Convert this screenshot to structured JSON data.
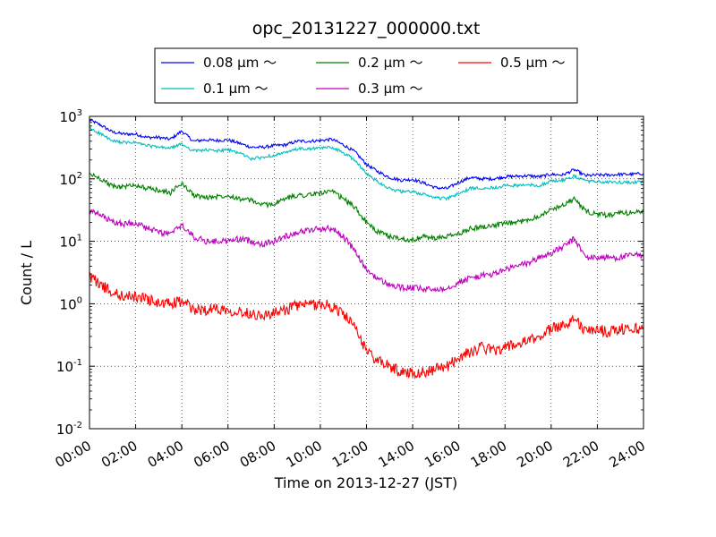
{
  "chart_data": {
    "type": "line",
    "title": "opc_20131227_000000.txt",
    "xlabel": "Time on 2013-12-27 (JST)",
    "ylabel": "Count / L",
    "yscale": "log",
    "xlim": [
      "00:00",
      "24:00"
    ],
    "ylim": [
      0.01,
      1000
    ],
    "grid": true,
    "legend_position": "top-center (above plot)",
    "x_ticks": [
      "00:00",
      "02:00",
      "04:00",
      "06:00",
      "08:00",
      "10:00",
      "12:00",
      "14:00",
      "16:00",
      "18:00",
      "20:00",
      "22:00",
      "24:00"
    ],
    "y_ticks": [
      {
        "value": 0.01,
        "base": "10",
        "exp": "-2"
      },
      {
        "value": 0.1,
        "base": "10",
        "exp": "-1"
      },
      {
        "value": 1,
        "base": "10",
        "exp": "0"
      },
      {
        "value": 10,
        "base": "10",
        "exp": "1"
      },
      {
        "value": 100,
        "base": "10",
        "exp": "2"
      },
      {
        "value": 1000,
        "base": "10",
        "exp": "3"
      }
    ],
    "x_hours": [
      0,
      0.5,
      1,
      1.5,
      2,
      2.5,
      3,
      3.5,
      4,
      4.5,
      5,
      5.5,
      6,
      6.5,
      7,
      7.5,
      8,
      8.5,
      9,
      9.5,
      10,
      10.5,
      11,
      11.5,
      12,
      12.5,
      13,
      13.5,
      14,
      14.5,
      15,
      15.5,
      16,
      16.5,
      17,
      17.5,
      18,
      18.5,
      19,
      19.5,
      20,
      20.5,
      21,
      21.5,
      22,
      22.5,
      23,
      23.5,
      24
    ],
    "series": [
      {
        "name": "0.08 μm ～",
        "color": "#0000ff",
        "values": [
          880,
          720,
          560,
          520,
          520,
          460,
          460,
          430,
          580,
          400,
          420,
          410,
          420,
          370,
          320,
          320,
          340,
          350,
          400,
          400,
          410,
          430,
          350,
          270,
          170,
          130,
          105,
          95,
          98,
          85,
          72,
          70,
          88,
          105,
          100,
          100,
          108,
          110,
          112,
          108,
          118,
          115,
          140,
          112,
          115,
          115,
          118,
          118,
          122
        ]
      },
      {
        "name": "0.1 μm ～",
        "color": "#00bfbf",
        "values": [
          650,
          520,
          400,
          380,
          380,
          340,
          320,
          310,
          360,
          280,
          290,
          280,
          290,
          260,
          210,
          220,
          240,
          260,
          300,
          300,
          310,
          320,
          260,
          200,
          120,
          90,
          70,
          62,
          62,
          56,
          50,
          48,
          58,
          70,
          72,
          72,
          78,
          78,
          80,
          78,
          92,
          95,
          110,
          92,
          90,
          88,
          88,
          88,
          88
        ]
      },
      {
        "name": "0.2 μm ～",
        "color": "#008000",
        "values": [
          120,
          100,
          75,
          75,
          80,
          70,
          65,
          60,
          85,
          55,
          50,
          52,
          55,
          48,
          45,
          38,
          40,
          48,
          55,
          55,
          60,
          62,
          48,
          35,
          20,
          14,
          12,
          11,
          10.5,
          12,
          11,
          12,
          13,
          16,
          17,
          18,
          19,
          20,
          22,
          26,
          32,
          38,
          48,
          30,
          27,
          26,
          28,
          29,
          30
        ]
      },
      {
        "name": "0.3 μm ～",
        "color": "#bf00bf",
        "values": [
          30,
          26,
          20,
          19,
          20,
          16,
          14,
          13,
          18,
          12,
          10,
          10,
          10,
          11,
          10,
          9,
          10,
          12,
          14,
          15,
          16,
          16,
          12,
          7,
          3.5,
          2.5,
          2,
          1.8,
          1.8,
          1.7,
          1.7,
          1.8,
          2.2,
          2.6,
          2.8,
          3,
          3.5,
          4,
          4.5,
          5.5,
          6.5,
          8,
          11,
          5.5,
          5.5,
          5.5,
          5.5,
          6,
          6
        ]
      },
      {
        "name": "0.5 μm ～",
        "color": "#ff0000",
        "values": [
          2.8,
          2,
          1.5,
          1.3,
          1.3,
          1.2,
          1.0,
          1.0,
          1.1,
          0.8,
          0.8,
          0.85,
          0.8,
          0.75,
          0.7,
          0.65,
          0.7,
          0.8,
          0.95,
          0.95,
          1.0,
          0.9,
          0.7,
          0.4,
          0.18,
          0.12,
          0.1,
          0.08,
          0.08,
          0.08,
          0.09,
          0.1,
          0.14,
          0.17,
          0.2,
          0.18,
          0.2,
          0.22,
          0.25,
          0.3,
          0.4,
          0.45,
          0.6,
          0.35,
          0.4,
          0.35,
          0.4,
          0.4,
          0.4
        ]
      }
    ]
  }
}
